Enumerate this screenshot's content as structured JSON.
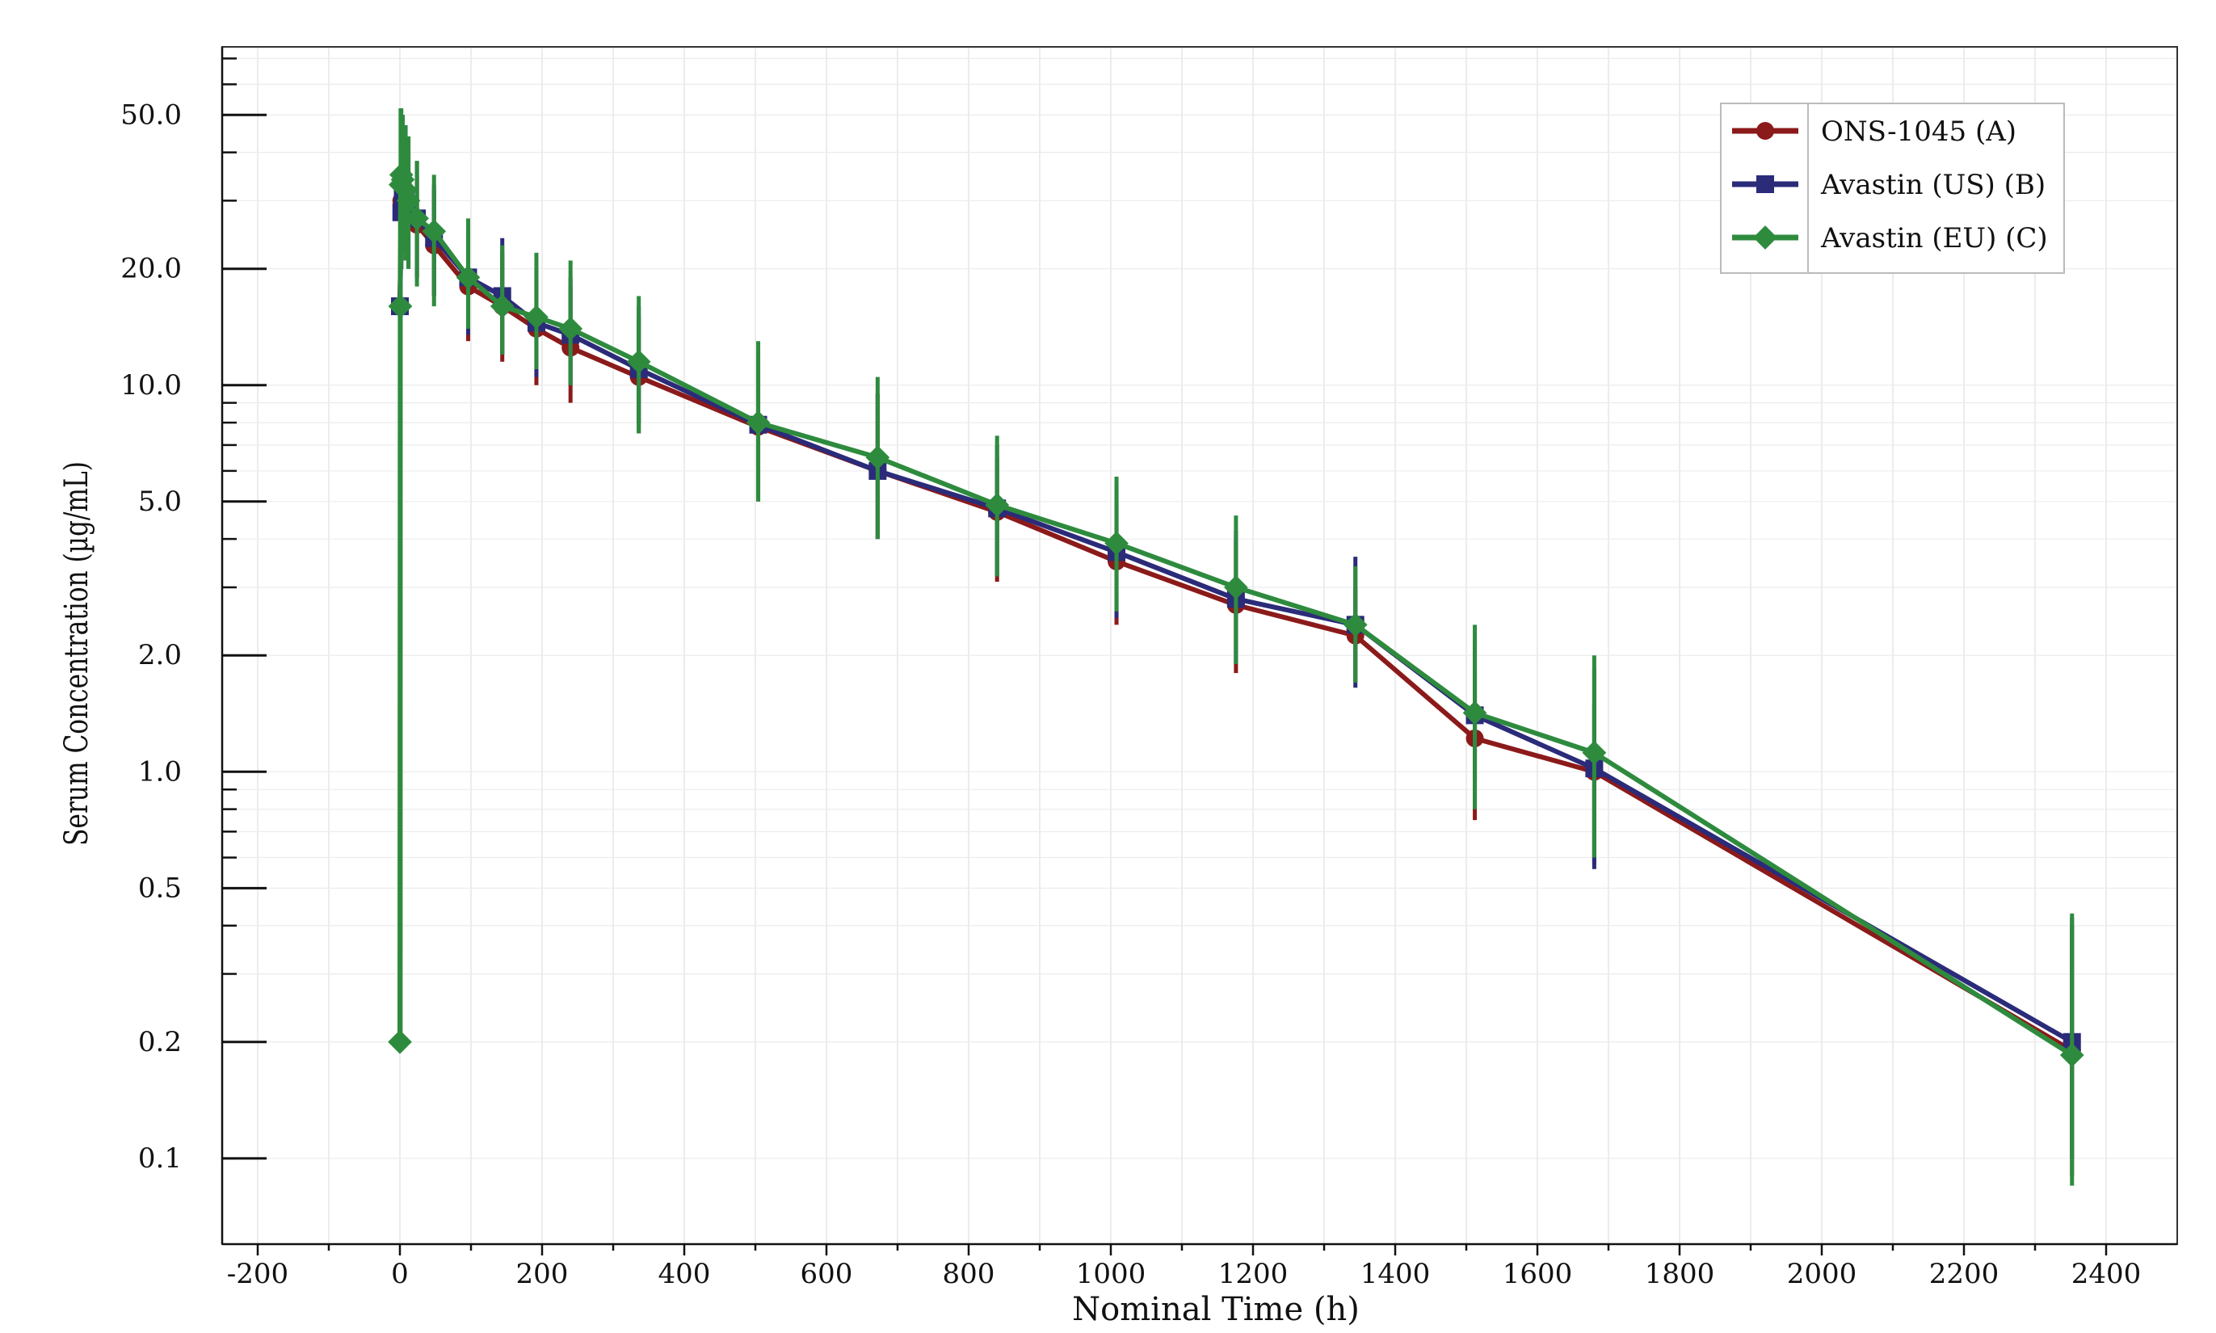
{
  "chart_data": {
    "type": "line",
    "title": "",
    "xlabel": "Nominal Time (h)",
    "ylabel": "Serum Concentration (µg/mL)",
    "xlim": [
      -250,
      2500
    ],
    "ylim": [
      0.06,
      75
    ],
    "yscale": "log",
    "grid": true,
    "legend_position": "top-right",
    "x_ticks": [
      -200,
      0,
      200,
      400,
      600,
      800,
      1000,
      1200,
      1400,
      1600,
      1800,
      2000,
      2200,
      2400
    ],
    "x_tick_labels": [
      "-200",
      "0",
      "200",
      "400",
      "600",
      "800",
      "1000",
      "1200",
      "1400",
      "1600",
      "1800",
      "2000",
      "2200",
      "2400"
    ],
    "y_ticks": [
      0.1,
      0.2,
      0.5,
      1.0,
      2.0,
      5.0,
      10.0,
      20.0,
      50.0
    ],
    "y_tick_labels": [
      "0.1",
      "0.2",
      "0.5",
      "1.0",
      "2.0",
      "5.0",
      "10.0",
      "20.0",
      "50.0"
    ],
    "series": [
      {
        "name": "ONS-1045 (A)",
        "color": "#8b1a1a",
        "marker": "circle",
        "x": [
          0,
          2,
          4,
          8,
          12,
          24,
          48,
          96,
          144,
          192,
          240,
          336,
          504,
          672,
          840,
          1008,
          1176,
          1344,
          1512,
          1680,
          2352
        ],
        "y": [
          16,
          30,
          33,
          31,
          29,
          26,
          23,
          18,
          16,
          14,
          12.5,
          10.5,
          7.8,
          6.0,
          4.7,
          3.5,
          2.7,
          2.25,
          1.22,
          1.0,
          0.19
        ],
        "err_low": [
          16,
          22,
          24,
          22,
          21,
          19,
          17,
          13,
          11.5,
          10,
          9,
          7.5,
          5.0,
          4.0,
          3.1,
          2.4,
          1.8,
          1.7,
          0.75,
          0.58,
          0.09
        ],
        "err_high": [
          16,
          45,
          48,
          44,
          40,
          35,
          32,
          25,
          22,
          19,
          18,
          15,
          11,
          9.5,
          6.5,
          5.0,
          4.0,
          3.0,
          1.8,
          1.5,
          0.4
        ]
      },
      {
        "name": "Avastin (US) (B)",
        "color": "#2b2b7a",
        "marker": "square",
        "x": [
          0,
          2,
          4,
          8,
          12,
          24,
          48,
          96,
          144,
          192,
          240,
          336,
          504,
          672,
          840,
          1008,
          1176,
          1344,
          1512,
          1680,
          2352
        ],
        "y": [
          16,
          28,
          31,
          30,
          29,
          27,
          24,
          19,
          17,
          14.5,
          13.5,
          11,
          7.9,
          6.0,
          4.8,
          3.7,
          2.8,
          2.4,
          1.4,
          1.02,
          0.2
        ],
        "err_low": [
          16,
          20,
          22,
          21,
          20,
          19,
          17,
          13.5,
          12,
          10.5,
          10,
          8,
          5.2,
          4.0,
          3.2,
          2.5,
          1.9,
          1.65,
          0.95,
          0.56,
          0.1
        ],
        "err_high": [
          16,
          46,
          50,
          47,
          44,
          38,
          33,
          26,
          24,
          20,
          19,
          16,
          12,
          9.5,
          7.0,
          5.5,
          4.2,
          3.6,
          2.2,
          1.85,
          0.42
        ]
      },
      {
        "name": "Avastin (EU) (C)",
        "color": "#2e8b3e",
        "marker": "diamond",
        "x": [
          0,
          0.5,
          1,
          2,
          4,
          8,
          12,
          24,
          48,
          96,
          144,
          192,
          240,
          336,
          504,
          672,
          840,
          1008,
          1176,
          1344,
          1512,
          1680,
          2352
        ],
        "y": [
          0.2,
          16,
          33,
          35,
          34,
          32,
          30,
          27,
          25,
          19,
          16,
          15,
          14,
          11.5,
          8.0,
          6.5,
          4.9,
          3.9,
          3.0,
          2.4,
          1.42,
          1.12,
          0.185
        ],
        "err_low": [
          0.2,
          16,
          0.2,
          20,
          22,
          21,
          20,
          18,
          16,
          14,
          12,
          11,
          10,
          7.5,
          5.0,
          4.0,
          3.2,
          2.6,
          1.9,
          1.7,
          0.8,
          0.6,
          0.085
        ],
        "err_high": [
          0.2,
          16,
          52,
          52,
          50,
          47,
          44,
          38,
          35,
          27,
          23,
          22,
          21,
          17,
          13,
          10.5,
          7.4,
          5.8,
          4.6,
          3.4,
          2.4,
          2.0,
          0.43
        ]
      }
    ]
  }
}
